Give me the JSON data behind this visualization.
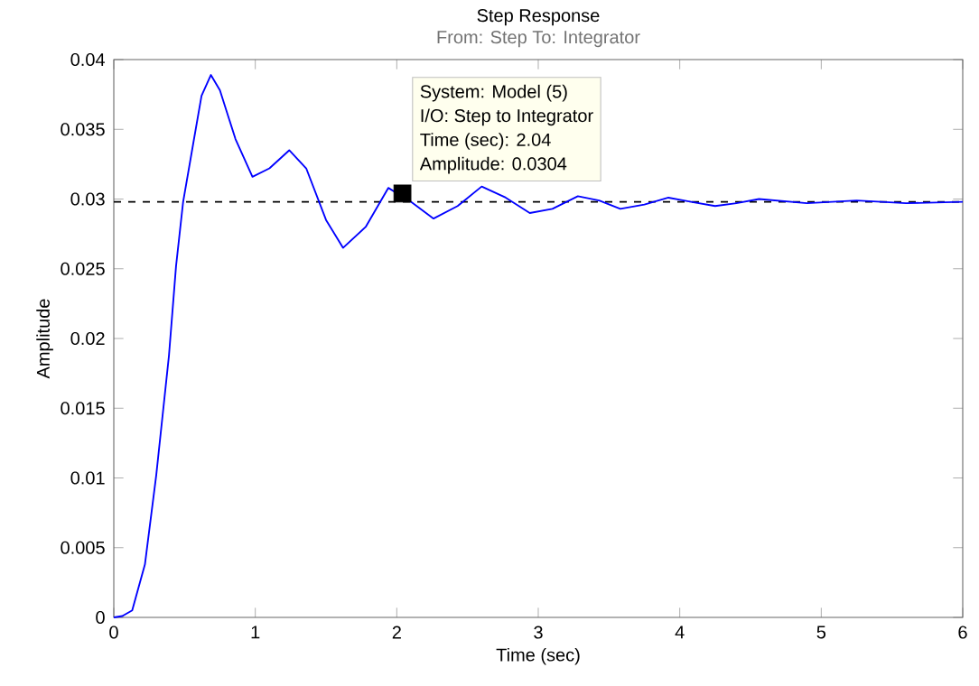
{
  "chart_data": {
    "type": "line",
    "title": "Step Response",
    "subtitle": "From: Step  To: Integrator",
    "xlabel": "Time (sec)",
    "ylabel": "Amplitude",
    "x": [
      0,
      0.06,
      0.13,
      0.22,
      0.3,
      0.39,
      0.44,
      0.49,
      0.56,
      0.62,
      0.686,
      0.75,
      0.86,
      0.98,
      1.1,
      1.24,
      1.36,
      1.5,
      1.62,
      1.78,
      1.94,
      2.1,
      2.26,
      2.43,
      2.6,
      2.77,
      2.94,
      3.1,
      3.28,
      3.43,
      3.58,
      3.75,
      3.92,
      4.08,
      4.25,
      4.4,
      4.56,
      4.9,
      5.25,
      5.6,
      6
    ],
    "series": [
      {
        "color": "#0000ff",
        "values": [
          0,
          0.0001,
          0.0005,
          0.0038,
          0.0102,
          0.0188,
          0.0252,
          0.0298,
          0.0339,
          0.0374,
          0.0389,
          0.0378,
          0.0343,
          0.0316,
          0.0322,
          0.0335,
          0.0322,
          0.0285,
          0.0265,
          0.028,
          0.0308,
          0.0298,
          0.0286,
          0.0295,
          0.0309,
          0.0301,
          0.029,
          0.0293,
          0.0302,
          0.0299,
          0.0293,
          0.0296,
          0.0301,
          0.0298,
          0.0295,
          0.0297,
          0.03,
          0.0297,
          0.0299,
          0.0297,
          0.0298
        ]
      },
      {
        "type": "scatter",
        "marker": "square",
        "color": "#000000",
        "x": [
          2.04
        ],
        "values": [
          0.0304
        ]
      }
    ],
    "xlim": [
      0,
      6
    ],
    "ylim": [
      0,
      0.04
    ],
    "xticks": [
      0,
      1,
      2,
      3,
      4,
      5,
      6
    ],
    "yticks": [
      0,
      0.005,
      0.01,
      0.015,
      0.02,
      0.025,
      0.03,
      0.035,
      0.04
    ],
    "ref_lines": [
      {
        "axis": "y",
        "value": 0.0298,
        "color": "#000000",
        "line_style": "dashed"
      }
    ],
    "annotations": [
      "System: Model (5)",
      "I/O: Step to Integrator",
      "Time (sec): 2.04",
      "Amplitude: 0.0304"
    ],
    "grid": false,
    "marker": "none",
    "line_style": "solid"
  }
}
